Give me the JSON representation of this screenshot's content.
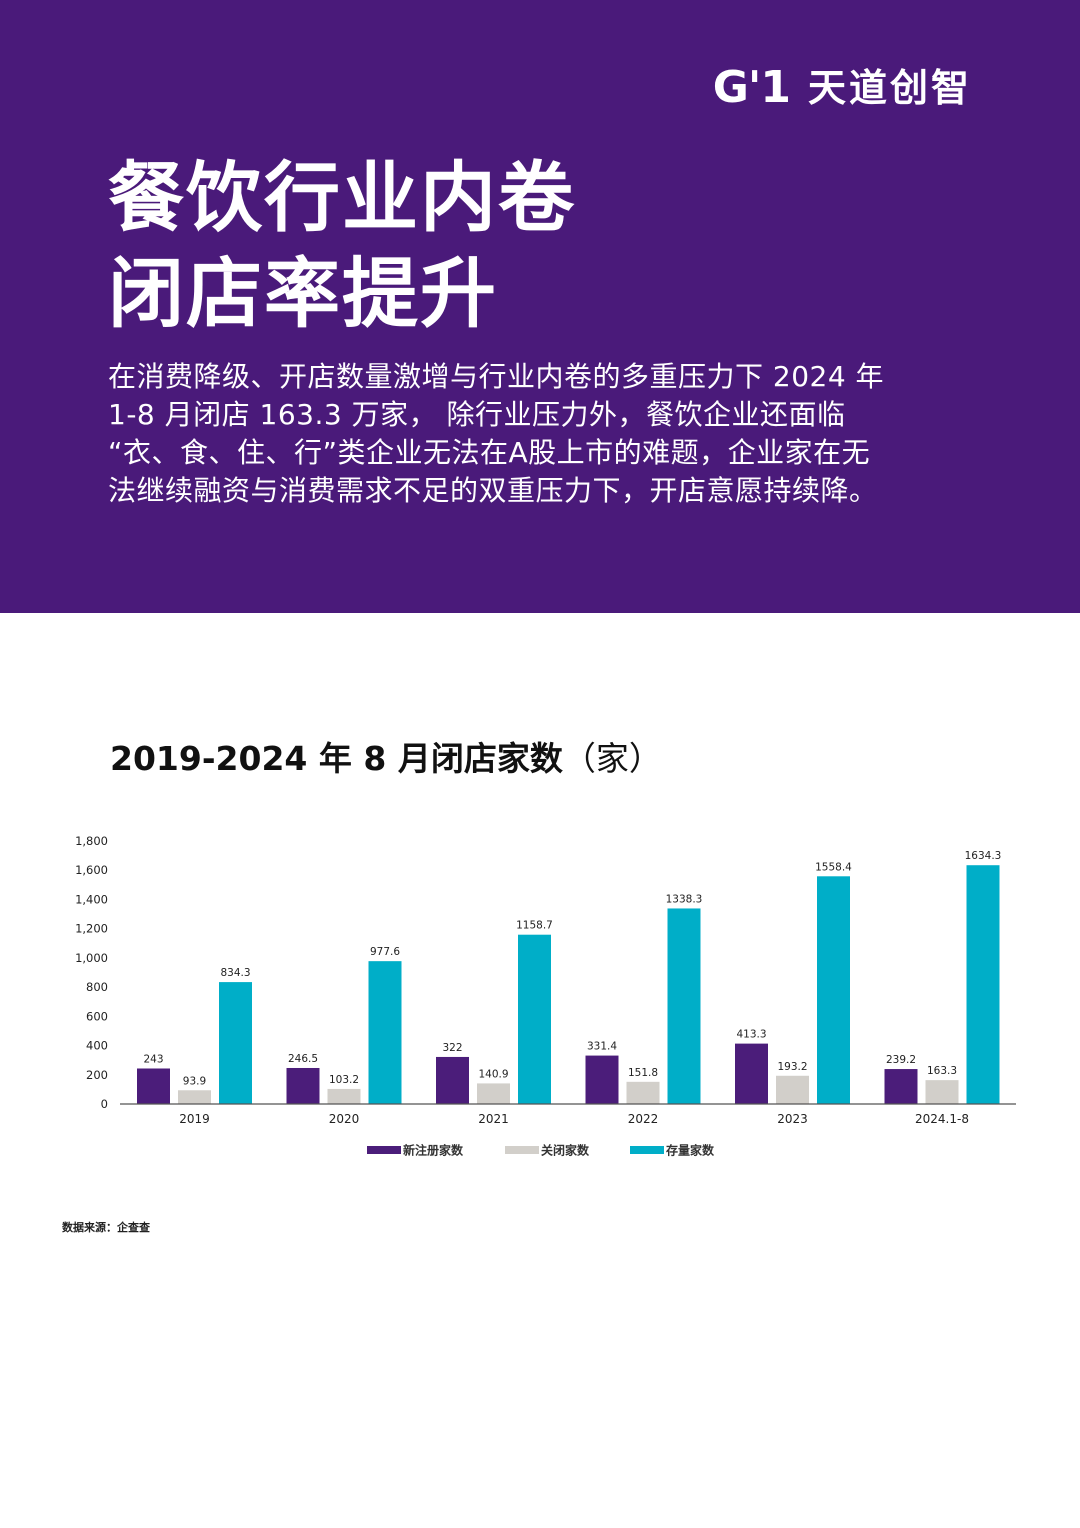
{
  "brand": {
    "logo_mark": "G'1",
    "name": "天道创智"
  },
  "hero": {
    "title_lines": [
      "餐饮行业内卷",
      "闭店率提升"
    ],
    "description_lines": [
      "在消费降级、开店数量激增与行业内卷的多重压力下 2024 年",
      "1-8 月闭店 163.3 万家， 除行业压力外，餐饮企业还面临",
      "“衣、食、住、行”类企业无法在A股上市的难题，企业家在无",
      "法继续融资与消费需求不足的双重压力下，开店意愿持续降。"
    ]
  },
  "chart_title": {
    "main": "2019-2024 年 8 月闭店家数",
    "unit": "（家）"
  },
  "chart_data": {
    "type": "bar",
    "categories": [
      "2019",
      "2020",
      "2021",
      "2022",
      "2023",
      "2024.1-8"
    ],
    "series": [
      {
        "name": "新注册家数",
        "color": "#4b1d7a",
        "values": [
          243,
          246.5,
          322,
          331.4,
          413.3,
          239.2
        ],
        "labels": [
          "243",
          "246.5",
          "322",
          "331.4",
          "413.3",
          "239.2"
        ]
      },
      {
        "name": "关闭家数",
        "color": "#d2cfca",
        "values": [
          93.9,
          103.2,
          140.9,
          151.8,
          193.2,
          163.3
        ],
        "labels": [
          "93.9",
          "103.2",
          "140.9",
          "151.8",
          "193.2",
          "163.3"
        ]
      },
      {
        "name": "存量家数",
        "color": "#00aec8",
        "values": [
          834.3,
          977.6,
          1158.7,
          1338.3,
          1558.4,
          1634.3
        ],
        "labels": [
          "834.3",
          "977.6",
          "1158.7",
          "1338.3",
          "1558.4",
          "1634.3"
        ]
      }
    ],
    "yticks": [
      "0",
      "200",
      "400",
      "600",
      "800",
      "1,000",
      "1,200",
      "1,400",
      "1,600",
      "1,800"
    ],
    "ylim": [
      0,
      1800
    ],
    "legend_position": "bottom-center",
    "grid": false
  },
  "source": "数据来源：企查查"
}
